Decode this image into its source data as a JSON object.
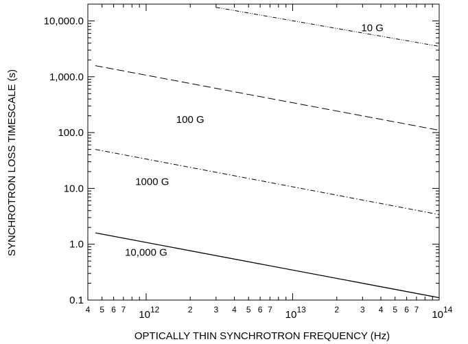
{
  "chart_data": {
    "type": "line",
    "xlabel": "OPTICALLY THIN SYNCHROTRON FREQUENCY (Hz)",
    "ylabel": "SYNCHROTRON LOSS TIMESCALE (s)",
    "x_scale": "log",
    "y_scale": "log",
    "xlim": [
      400000000000.0,
      100000000000000.0
    ],
    "ylim": [
      0.1,
      20000
    ],
    "grid": false,
    "y_ticks": [
      {
        "value": 0.1,
        "label": "0.1"
      },
      {
        "value": 1,
        "label": "1.0"
      },
      {
        "value": 10,
        "label": "10.0"
      },
      {
        "value": 100,
        "label": "100.0"
      },
      {
        "value": 1000,
        "label": "1,000.0"
      },
      {
        "value": 10000,
        "label": "10,000.0"
      }
    ],
    "x_major_ticks": [
      {
        "value": 1000000000000.0,
        "base": "10",
        "exp": "12"
      },
      {
        "value": 10000000000000.0,
        "base": "10",
        "exp": "13"
      },
      {
        "value": 100000000000000.0,
        "base": "10",
        "exp": "14"
      }
    ],
    "x_minor_ticks": [
      {
        "value": 400000000000.0,
        "label": "4"
      },
      {
        "value": 500000000000.0,
        "label": "5"
      },
      {
        "value": 600000000000.0,
        "label": "6"
      },
      {
        "value": 700000000000.0,
        "label": "7"
      },
      {
        "value": 2000000000000.0,
        "label": "2"
      },
      {
        "value": 3000000000000.0,
        "label": "3"
      },
      {
        "value": 4000000000000.0,
        "label": "4"
      },
      {
        "value": 5000000000000.0,
        "label": "5"
      },
      {
        "value": 6000000000000.0,
        "label": "6"
      },
      {
        "value": 7000000000000.0,
        "label": "7"
      },
      {
        "value": 20000000000000.0,
        "label": "2"
      },
      {
        "value": 30000000000000.0,
        "label": "3"
      },
      {
        "value": 40000000000000.0,
        "label": "4"
      },
      {
        "value": 50000000000000.0,
        "label": "5"
      },
      {
        "value": 60000000000000.0,
        "label": "6"
      },
      {
        "value": 70000000000000.0,
        "label": "7"
      }
    ],
    "series": [
      {
        "name": "10 G",
        "style": "dash-dot-dot",
        "x": [
          3000000000000.0,
          100000000000000.0
        ],
        "y": [
          17500,
          3500
        ],
        "label_at": [
          35000000000000.0,
          6500
        ]
      },
      {
        "name": "100 G",
        "style": "dashed",
        "x": [
          450000000000.0,
          100000000000000.0
        ],
        "y": [
          1580,
          110
        ],
        "label_at": [
          2000000000000.0,
          150
        ]
      },
      {
        "name": "1000 G",
        "style": "dash-dot",
        "x": [
          450000000000.0,
          100000000000000.0
        ],
        "y": [
          50,
          3.4
        ],
        "label_at": [
          1100000000000.0,
          11.5
        ]
      },
      {
        "name": "10,000 G",
        "style": "solid",
        "x": [
          450000000000.0,
          100000000000000.0
        ],
        "y": [
          1.6,
          0.11
        ],
        "label_at": [
          1000000000000.0,
          0.62
        ]
      }
    ]
  }
}
